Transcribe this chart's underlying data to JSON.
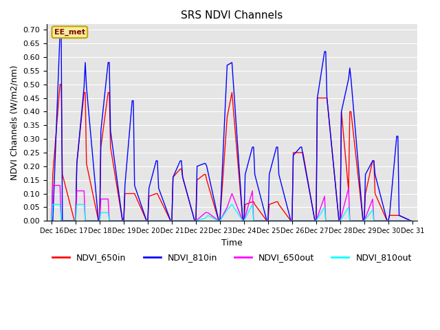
{
  "title": "SRS NDVI Channels",
  "xlabel": "Time",
  "ylabel": "NDVI Channels (W/m2/nm)",
  "annotation": "EE_met",
  "ylim": [
    0.0,
    0.72
  ],
  "yticks": [
    0.0,
    0.05,
    0.1,
    0.15,
    0.2,
    0.25,
    0.3,
    0.35,
    0.4,
    0.45,
    0.5,
    0.55,
    0.6,
    0.65,
    0.7
  ],
  "xtick_labels": [
    "Dec 16",
    "Dec 17",
    "Dec 18",
    "Dec 19",
    "Dec 20",
    "Dec 21",
    "Dec 22",
    "Dec 23",
    "Dec 24",
    "Dec 25",
    "Dec 26",
    "Dec 27",
    "Dec 28",
    "Dec 29",
    "Dec 30",
    "Dec 31"
  ],
  "legend_labels": [
    "NDVI_650in",
    "NDVI_810in",
    "NDVI_650out",
    "NDVI_810out"
  ],
  "legend_colors": [
    "#ff0000",
    "#0000ff",
    "#ff00ff",
    "#00ffff"
  ],
  "plot_bg": "#e5e5e5",
  "fig_bg": "#ffffff",
  "NDVI_650in_x": [
    16.0,
    16.05,
    16.35,
    16.4,
    16.45,
    16.95,
    17.0,
    17.05,
    17.35,
    17.4,
    17.45,
    17.95,
    18.0,
    18.05,
    18.35,
    18.4,
    18.45,
    18.95,
    19.0,
    19.05,
    19.35,
    19.4,
    19.45,
    19.95,
    20.0,
    20.05,
    20.35,
    20.4,
    20.45,
    20.95,
    21.0,
    21.05,
    21.35,
    21.4,
    21.45,
    21.95,
    22.0,
    22.05,
    22.35,
    22.4,
    22.45,
    22.95,
    23.0,
    23.3,
    23.5,
    23.95,
    24.0,
    24.05,
    24.35,
    24.4,
    24.45,
    24.95,
    25.0,
    25.05,
    25.35,
    25.4,
    25.45,
    25.95,
    26.0,
    26.05,
    26.35,
    26.4,
    26.45,
    26.95,
    27.0,
    27.05,
    27.35,
    27.4,
    27.45,
    27.95,
    28.0,
    28.05,
    28.35,
    28.4,
    28.45,
    28.95,
    29.0,
    29.05,
    29.35,
    29.4,
    29.45,
    29.95,
    30.0,
    30.05,
    30.35,
    30.4,
    30.45,
    30.95
  ],
  "NDVI_650in_y": [
    0.0,
    0.17,
    0.5,
    0.5,
    0.17,
    0.0,
    0.0,
    0.21,
    0.47,
    0.47,
    0.21,
    0.0,
    0.0,
    0.27,
    0.47,
    0.47,
    0.27,
    0.0,
    0.0,
    0.1,
    0.1,
    0.1,
    0.1,
    0.0,
    0.0,
    0.09,
    0.1,
    0.1,
    0.09,
    0.0,
    0.0,
    0.16,
    0.19,
    0.19,
    0.16,
    0.0,
    0.0,
    0.15,
    0.17,
    0.17,
    0.15,
    0.0,
    0.0,
    0.38,
    0.47,
    0.0,
    0.0,
    0.06,
    0.07,
    0.07,
    0.06,
    0.0,
    0.0,
    0.06,
    0.07,
    0.07,
    0.06,
    0.0,
    0.0,
    0.25,
    0.25,
    0.25,
    0.25,
    0.0,
    0.0,
    0.45,
    0.45,
    0.45,
    0.45,
    0.0,
    0.0,
    0.4,
    0.11,
    0.4,
    0.4,
    0.0,
    0.0,
    0.1,
    0.22,
    0.22,
    0.1,
    0.0,
    0.0,
    0.02,
    0.02,
    0.02,
    0.02,
    0.0
  ],
  "NDVI_810in_x": [
    16.0,
    16.05,
    16.35,
    16.4,
    16.45,
    16.95,
    17.0,
    17.05,
    17.35,
    17.4,
    17.45,
    17.95,
    18.0,
    18.05,
    18.35,
    18.4,
    18.45,
    18.95,
    19.0,
    19.05,
    19.35,
    19.4,
    19.45,
    19.95,
    20.0,
    20.05,
    20.35,
    20.4,
    20.45,
    20.95,
    21.0,
    21.05,
    21.35,
    21.4,
    21.45,
    21.95,
    22.0,
    22.05,
    22.35,
    22.4,
    22.45,
    22.95,
    23.0,
    23.3,
    23.5,
    23.95,
    24.0,
    24.05,
    24.35,
    24.4,
    24.45,
    24.95,
    25.0,
    25.05,
    25.35,
    25.4,
    25.45,
    25.95,
    26.0,
    26.05,
    26.35,
    26.4,
    26.45,
    26.95,
    27.0,
    27.05,
    27.35,
    27.4,
    27.45,
    27.95,
    28.0,
    28.05,
    28.35,
    28.4,
    28.45,
    28.95,
    29.0,
    29.05,
    29.35,
    29.4,
    29.45,
    29.95,
    30.0,
    30.05,
    30.35,
    30.4,
    30.45,
    30.95
  ],
  "NDVI_810in_y": [
    0.0,
    0.0,
    0.69,
    0.69,
    0.0,
    0.0,
    0.0,
    0.21,
    0.49,
    0.58,
    0.49,
    0.0,
    0.0,
    0.33,
    0.58,
    0.58,
    0.33,
    0.0,
    0.0,
    0.13,
    0.44,
    0.44,
    0.13,
    0.0,
    0.0,
    0.12,
    0.22,
    0.22,
    0.12,
    0.0,
    0.0,
    0.16,
    0.22,
    0.22,
    0.16,
    0.0,
    0.0,
    0.2,
    0.21,
    0.21,
    0.2,
    0.0,
    0.0,
    0.57,
    0.58,
    0.0,
    0.0,
    0.17,
    0.27,
    0.27,
    0.17,
    0.0,
    0.0,
    0.17,
    0.27,
    0.27,
    0.17,
    0.0,
    0.0,
    0.24,
    0.27,
    0.27,
    0.24,
    0.0,
    0.0,
    0.45,
    0.62,
    0.62,
    0.45,
    0.0,
    0.0,
    0.4,
    0.52,
    0.56,
    0.52,
    0.0,
    0.0,
    0.17,
    0.22,
    0.22,
    0.17,
    0.0,
    0.0,
    0.02,
    0.31,
    0.31,
    0.02,
    0.0
  ],
  "NDVI_650out_x": [
    16.0,
    16.05,
    16.35,
    16.4,
    16.95,
    17.0,
    17.05,
    17.35,
    17.4,
    17.95,
    18.0,
    18.05,
    18.35,
    18.4,
    18.95,
    19.95,
    20.95,
    21.95,
    22.0,
    22.4,
    22.5,
    22.95,
    23.0,
    23.3,
    23.5,
    23.95,
    24.0,
    24.35,
    24.4,
    24.95,
    25.95,
    26.95,
    27.0,
    27.35,
    27.4,
    27.95,
    28.0,
    28.35,
    28.4,
    28.95,
    29.0,
    29.35,
    29.4,
    29.95,
    30.95
  ],
  "NDVI_650out_y": [
    0.0,
    0.13,
    0.13,
    0.0,
    0.0,
    0.0,
    0.11,
    0.11,
    0.0,
    0.0,
    0.0,
    0.08,
    0.08,
    0.0,
    0.0,
    0.0,
    0.0,
    0.0,
    0.0,
    0.03,
    0.03,
    0.0,
    0.0,
    0.05,
    0.1,
    0.0,
    0.0,
    0.11,
    0.0,
    0.0,
    0.0,
    0.0,
    0.0,
    0.09,
    0.0,
    0.0,
    0.0,
    0.12,
    0.0,
    0.0,
    0.0,
    0.08,
    0.0,
    0.0,
    0.0
  ],
  "NDVI_810out_x": [
    16.0,
    16.05,
    16.35,
    16.4,
    16.95,
    17.0,
    17.05,
    17.35,
    17.4,
    17.95,
    18.0,
    18.05,
    18.35,
    18.4,
    18.95,
    19.95,
    20.95,
    21.95,
    22.0,
    22.4,
    22.5,
    22.95,
    23.0,
    23.3,
    23.5,
    23.95,
    24.0,
    24.35,
    24.4,
    24.95,
    25.95,
    26.95,
    27.0,
    27.35,
    27.4,
    27.95,
    28.0,
    28.35,
    28.4,
    28.95,
    29.0,
    29.35,
    29.4,
    29.95,
    30.95
  ],
  "NDVI_810out_y": [
    0.0,
    0.06,
    0.06,
    0.0,
    0.0,
    0.0,
    0.06,
    0.06,
    0.0,
    0.0,
    0.0,
    0.03,
    0.03,
    0.0,
    0.0,
    0.0,
    0.0,
    0.0,
    0.0,
    0.01,
    0.02,
    0.0,
    0.0,
    0.04,
    0.06,
    0.0,
    0.0,
    0.06,
    0.0,
    0.0,
    0.0,
    0.0,
    0.0,
    0.05,
    0.0,
    0.0,
    0.0,
    0.05,
    0.0,
    0.0,
    0.0,
    0.04,
    0.0,
    0.0,
    0.0
  ]
}
